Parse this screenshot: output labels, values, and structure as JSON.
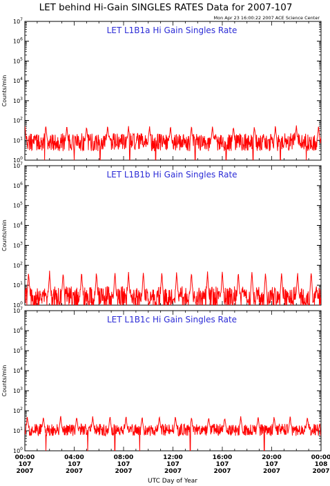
{
  "page": {
    "title": "LET behind Hi-Gain SINGLES RATES Data for 2007-107",
    "timestamp": "Mon Apr 23 16:00:22 2007 ACE Science Center"
  },
  "colors": {
    "series": "#ff0000",
    "panel_title": "#2b2bd6",
    "axes": "#000000"
  },
  "chart_data": [
    {
      "type": "line",
      "title": "LET L1B1a Hi Gain Singles Rate",
      "ylabel": "Counts/min",
      "yscale": "log",
      "ylim": [
        1,
        10000000
      ],
      "y_ticks": [
        1,
        10,
        100,
        1000,
        10000,
        100000,
        1000000,
        10000000
      ],
      "xlim": [
        0,
        24
      ],
      "baseline": 8,
      "spread_decades": 0.45,
      "spike_value": 50,
      "spike_hours": [
        0.0,
        1.7,
        3.4,
        5.0,
        6.7,
        8.4,
        10.1,
        11.8,
        13.5,
        15.2,
        16.9,
        18.6,
        20.3,
        22.0,
        23.8
      ],
      "dip_hours": [
        1.6,
        4.0,
        6.1,
        8.5,
        10.6,
        13.8,
        16.3,
        18.5,
        20.7,
        22.8
      ]
    },
    {
      "type": "line",
      "title": "LET L1B1b Hi Gain Singles Rate",
      "ylabel": "Counts/min",
      "yscale": "log",
      "ylim": [
        1,
        10000000
      ],
      "y_ticks": [
        1,
        10,
        100,
        1000,
        10000,
        100000,
        1000000,
        10000000
      ],
      "xlim": [
        0,
        24
      ],
      "baseline": 2.5,
      "spread_decades": 0.55,
      "spike_value": 45,
      "spike_hours": [
        0.3,
        2.0,
        3.1,
        4.6,
        5.8,
        7.3,
        8.4,
        9.6,
        11.1,
        12.3,
        13.5,
        14.8,
        16.0,
        17.3,
        18.4,
        19.5,
        20.8,
        22.1,
        23.2
      ],
      "dip_hours": []
    },
    {
      "type": "line",
      "title": "LET L1B1c Hi Gain Singles Rate",
      "ylabel": "Counts/min",
      "yscale": "log",
      "ylim": [
        1,
        10000000
      ],
      "y_ticks": [
        1,
        10,
        100,
        1000,
        10000,
        100000,
        1000000,
        10000000
      ],
      "xlim": [
        0,
        24
      ],
      "baseline": 11,
      "spread_decades": 0.3,
      "spike_value": 50,
      "spike_hours": [
        0.2,
        1.5,
        2.9,
        4.2,
        5.5,
        6.9,
        8.2,
        9.5,
        10.9,
        12.2,
        13.5,
        14.9,
        16.2,
        17.5,
        18.9,
        20.2,
        21.5,
        22.9
      ],
      "dip_hours": [
        1.7,
        5.1,
        7.3,
        9.3,
        13.4,
        19.4
      ]
    }
  ],
  "x_axis": {
    "label": "UTC Day of Year",
    "ticks": [
      {
        "hour": 0,
        "time": "00:00",
        "doy": "107",
        "year": "2007"
      },
      {
        "hour": 4,
        "time": "04:00",
        "doy": "107",
        "year": "2007"
      },
      {
        "hour": 8,
        "time": "08:00",
        "doy": "107",
        "year": "2007"
      },
      {
        "hour": 12,
        "time": "12:00",
        "doy": "107",
        "year": "2007"
      },
      {
        "hour": 16,
        "time": "16:00",
        "doy": "107",
        "year": "2007"
      },
      {
        "hour": 20,
        "time": "20:00",
        "doy": "107",
        "year": "2007"
      },
      {
        "hour": 24,
        "time": "00:00",
        "doy": "108",
        "year": "2007"
      }
    ]
  }
}
